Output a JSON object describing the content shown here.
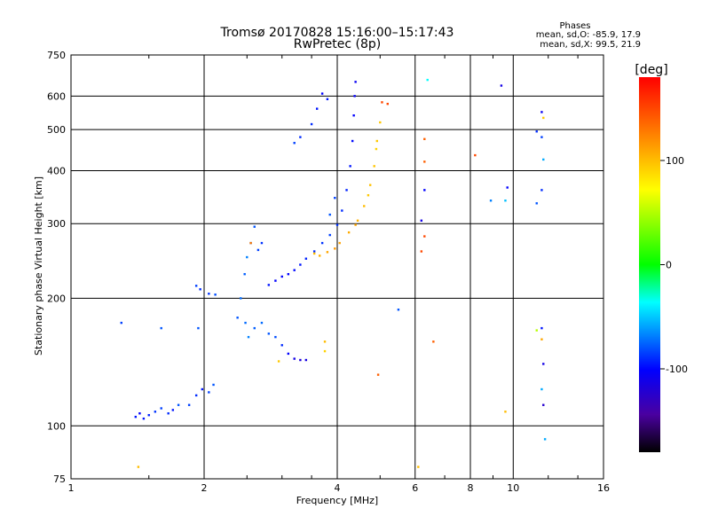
{
  "chart_data": {
    "type": "scatter",
    "title": "Tromsø 20170828 15:16:00–15:17:43",
    "subtitle": "RwPretec (8p)",
    "xlabel": "Frequency [MHz]",
    "ylabel": "Stationary phase Virtual Height [km]",
    "x_scale": "log",
    "y_scale": "log",
    "xlim": [
      1,
      16
    ],
    "ylim": [
      75,
      750
    ],
    "x_ticks": [
      1,
      2,
      4,
      6,
      8,
      10,
      16
    ],
    "y_ticks": [
      75,
      100,
      200,
      300,
      400,
      500,
      600,
      750
    ],
    "grid": true,
    "colorbar": {
      "label": "[deg]",
      "range": [
        -180,
        180
      ],
      "ticks": [
        100,
        0,
        -100
      ]
    },
    "stats": {
      "header": "Phases",
      "line_o": "mean, sd,O: -85.9, 17.9",
      "line_x": "mean, sd,X:  99.5, 21.9"
    },
    "series": [
      {
        "values": [
          [
            1.4,
            105,
            -95
          ],
          [
            1.43,
            107,
            -100
          ],
          [
            1.46,
            104,
            -95
          ],
          [
            1.5,
            106,
            -92
          ],
          [
            1.55,
            108,
            -88
          ],
          [
            1.6,
            110,
            -85
          ],
          [
            1.66,
            107,
            -90
          ],
          [
            1.7,
            109,
            -95
          ],
          [
            1.75,
            112,
            -80
          ],
          [
            1.85,
            112,
            -85
          ],
          [
            1.92,
            118,
            -90
          ],
          [
            1.98,
            122,
            -95
          ],
          [
            2.05,
            120,
            -85
          ],
          [
            2.1,
            125,
            -80
          ],
          [
            1.94,
            170,
            -80
          ],
          [
            1.92,
            214,
            -85
          ],
          [
            1.96,
            210,
            -90
          ],
          [
            2.05,
            205,
            -88
          ],
          [
            2.12,
            204,
            -82
          ],
          [
            2.38,
            180,
            -80
          ],
          [
            2.42,
            200,
            -75
          ],
          [
            2.47,
            228,
            -78
          ],
          [
            2.5,
            250,
            -70
          ],
          [
            2.55,
            270,
            -72
          ],
          [
            2.6,
            295,
            -80
          ],
          [
            2.48,
            175,
            -75
          ],
          [
            2.52,
            162,
            -70
          ],
          [
            2.6,
            170,
            -78
          ],
          [
            2.7,
            175,
            -75
          ],
          [
            2.8,
            165,
            -80
          ],
          [
            2.9,
            162,
            -82
          ],
          [
            3.0,
            155,
            -90
          ],
          [
            3.1,
            148,
            -100
          ],
          [
            3.2,
            144,
            -110
          ],
          [
            3.3,
            143,
            -115
          ],
          [
            3.4,
            143,
            -112
          ],
          [
            2.8,
            215,
            -95
          ],
          [
            2.9,
            220,
            -100
          ],
          [
            3.0,
            225,
            -100
          ],
          [
            3.1,
            228,
            -100
          ],
          [
            3.2,
            233,
            -98
          ],
          [
            3.3,
            240,
            -95
          ],
          [
            3.4,
            248,
            -92
          ],
          [
            3.55,
            258,
            -90
          ],
          [
            3.7,
            270,
            -88
          ],
          [
            3.85,
            282,
            -85
          ],
          [
            4.0,
            298,
            -88
          ],
          [
            4.1,
            322,
            -90
          ],
          [
            4.2,
            360,
            -92
          ],
          [
            4.28,
            410,
            -95
          ],
          [
            4.33,
            470,
            -98
          ],
          [
            4.36,
            540,
            -100
          ],
          [
            4.38,
            600,
            -102
          ],
          [
            4.4,
            648,
            -105
          ],
          [
            3.95,
            345,
            -85
          ],
          [
            3.85,
            315,
            -80
          ],
          [
            3.5,
            515,
            -90
          ],
          [
            3.2,
            465,
            -85
          ],
          [
            3.8,
            590,
            -95
          ],
          [
            3.7,
            608,
            -100
          ],
          [
            3.3,
            480,
            -90
          ],
          [
            3.6,
            560,
            -95
          ],
          [
            2.7,
            270,
            -88
          ],
          [
            2.65,
            260,
            -85
          ],
          [
            1.6,
            170,
            -80
          ],
          [
            1.3,
            175,
            -85
          ],
          [
            5.5,
            188,
            -80
          ],
          [
            9.4,
            635,
            -110
          ],
          [
            11.6,
            550,
            -105
          ],
          [
            11.6,
            480,
            -85
          ],
          [
            11.3,
            495,
            -90
          ],
          [
            11.7,
            425,
            -60
          ],
          [
            11.6,
            360,
            -90
          ],
          [
            11.7,
            140,
            -110
          ],
          [
            11.6,
            122,
            -60
          ],
          [
            11.7,
            112,
            -120
          ],
          [
            11.8,
            93,
            -60
          ],
          [
            11.6,
            170,
            -95
          ],
          [
            9.7,
            365,
            -100
          ],
          [
            9.6,
            340,
            -55
          ],
          [
            6.2,
            305,
            -110
          ],
          [
            6.4,
            655,
            -40
          ],
          [
            6.3,
            360,
            -100
          ],
          [
            8.9,
            340,
            -70
          ],
          [
            11.3,
            335,
            -80
          ]
        ]
      },
      {
        "values": [
          [
            3.55,
            255,
            100
          ],
          [
            3.65,
            252,
            105
          ],
          [
            3.8,
            257,
            110
          ],
          [
            3.95,
            262,
            115
          ],
          [
            4.05,
            270,
            112
          ],
          [
            4.25,
            286,
            108
          ],
          [
            4.45,
            305,
            105
          ],
          [
            4.6,
            330,
            100
          ],
          [
            4.75,
            370,
            98
          ],
          [
            4.85,
            410,
            96
          ],
          [
            4.92,
            470,
            95
          ],
          [
            5.0,
            520,
            95
          ],
          [
            5.05,
            580,
            150
          ],
          [
            4.9,
            450,
            90
          ],
          [
            4.7,
            350,
            95
          ],
          [
            4.4,
            298,
            110
          ],
          [
            5.2,
            575,
            150
          ],
          [
            6.3,
            475,
            140
          ],
          [
            6.3,
            420,
            140
          ],
          [
            6.3,
            280,
            150
          ],
          [
            6.2,
            258,
            150
          ],
          [
            6.6,
            158,
            140
          ],
          [
            3.75,
            158,
            100
          ],
          [
            3.75,
            150,
            90
          ],
          [
            4.95,
            132,
            140
          ],
          [
            8.2,
            435,
            150
          ],
          [
            9.6,
            108,
            100
          ],
          [
            11.7,
            533,
            95
          ],
          [
            6.1,
            80,
            100
          ],
          [
            1.42,
            80,
            100
          ],
          [
            2.95,
            142,
            95
          ],
          [
            11.6,
            160,
            110
          ],
          [
            2.55,
            270,
            130
          ],
          [
            11.3,
            168,
            50
          ]
        ]
      }
    ]
  }
}
